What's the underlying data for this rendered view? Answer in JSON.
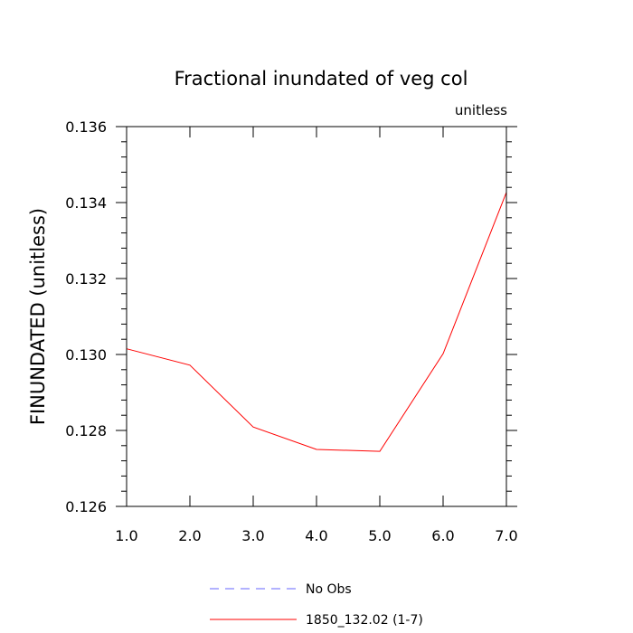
{
  "chart_data": {
    "type": "line",
    "title": "Fractional inundated of veg col",
    "units_label": "unitless",
    "xlabel": "",
    "ylabel": "FINUNDATED  (unitless)",
    "xlim": [
      1.0,
      7.0
    ],
    "ylim": [
      0.126,
      0.136
    ],
    "x_ticks": [
      "1.0",
      "2.0",
      "3.0",
      "4.0",
      "5.0",
      "6.0",
      "7.0"
    ],
    "y_ticks": [
      "0.126",
      "0.128",
      "0.130",
      "0.132",
      "0.134",
      "0.136"
    ],
    "grid": false,
    "legend_position": "bottom",
    "series": [
      {
        "name": "No Obs",
        "color": "#6666ff",
        "style": "dashed",
        "x": [],
        "y": []
      },
      {
        "name": "1850_132.02 (1-7)",
        "color": "#ff0000",
        "style": "solid",
        "x": [
          1,
          2,
          3,
          4,
          5,
          6,
          7
        ],
        "y": [
          0.13015,
          0.12972,
          0.12809,
          0.1275,
          0.12745,
          0.13002,
          0.13427
        ]
      }
    ]
  }
}
